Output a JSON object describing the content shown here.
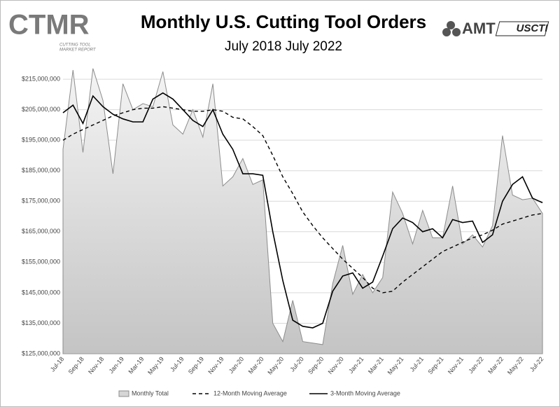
{
  "chart_data": {
    "type": "line",
    "title": "Monthly U.S. Cutting Tool Orders",
    "subtitle": "July 2018 July 2022",
    "logos": {
      "ctmr": "CTMR",
      "ctmr_tagline": [
        "CUTTING TOOL",
        "MARKET REPORT"
      ],
      "amt": "AMT",
      "uscti": "USCTI"
    },
    "categories": [
      "Jul-18",
      null,
      "Sep-18",
      null,
      "Nov-18",
      null,
      "Jan-19",
      null,
      "Mar-19",
      null,
      "May-19",
      null,
      "Jul-19",
      null,
      "Sep-19",
      null,
      "Nov-19",
      null,
      "Jan-20",
      null,
      "Mar-20",
      null,
      "May-20",
      null,
      "Jul-20",
      null,
      "Sep-20",
      null,
      "Nov-20",
      null,
      "Jan-21",
      null,
      "Mar-21",
      null,
      "May-21",
      null,
      "Jul-21",
      null,
      "Sep-21",
      null,
      "Nov-21",
      null,
      "Jan-22",
      null,
      "Mar-22",
      null,
      "May-22",
      null,
      "Jul-22"
    ],
    "series": [
      {
        "name": "Monthly Total",
        "kind": "area",
        "color": "#8c8c8c",
        "values": [
          192000000,
          218000000,
          191000000,
          218500000,
          208000000,
          184000000,
          213500000,
          205000000,
          207000000,
          206000000,
          217500000,
          200000000,
          197000000,
          205000000,
          196000000,
          213500000,
          180000000,
          183000000,
          189000000,
          180500000,
          182000000,
          135000000,
          129000000,
          142500000,
          129000000,
          128500000,
          128000000,
          148000000,
          160500000,
          144500000,
          151000000,
          145000000,
          150000000,
          178000000,
          171000000,
          161000000,
          172000000,
          163000000,
          163000000,
          180000000,
          161000000,
          164000000,
          160000000,
          167000000,
          196500000,
          177000000,
          175500000,
          176000000,
          171000000
        ]
      },
      {
        "name": "12-Month Moving Average",
        "kind": "dashed",
        "color": "#000000",
        "values": [
          195000000,
          197000000,
          198500000,
          200000000,
          201500000,
          203000000,
          204000000,
          205000000,
          205500000,
          205500000,
          206000000,
          205500000,
          205000000,
          204500000,
          204500000,
          205000000,
          204500000,
          202500000,
          202000000,
          199500000,
          196500000,
          190000000,
          183000000,
          177500000,
          171500000,
          167000000,
          163000000,
          159500000,
          156000000,
          153000000,
          150000000,
          146500000,
          145000000,
          145500000,
          148500000,
          151000000,
          153500000,
          156000000,
          158500000,
          160000000,
          161500000,
          163000000,
          164000000,
          165500000,
          167500000,
          168500000,
          169500000,
          170500000,
          171000000
        ]
      },
      {
        "name": "3-Month Moving Average",
        "kind": "solid",
        "color": "#000000",
        "values": [
          204000000,
          206500000,
          200500000,
          209500000,
          206000000,
          203500000,
          202000000,
          201000000,
          201000000,
          208500000,
          210500000,
          208500000,
          205000000,
          201500000,
          199500000,
          205000000,
          197000000,
          192000000,
          184000000,
          184000000,
          183500000,
          165000000,
          149000000,
          136000000,
          134000000,
          133500000,
          135000000,
          145500000,
          150500000,
          151500000,
          146500000,
          148500000,
          157000000,
          166000000,
          169500000,
          168000000,
          165000000,
          166000000,
          163000000,
          169000000,
          168000000,
          168500000,
          161500000,
          164000000,
          175000000,
          180500000,
          183000000,
          176000000,
          174500000
        ]
      }
    ],
    "ylim": [
      125000000,
      218000000
    ],
    "yticks": [
      {
        "value": 125000000,
        "label": "$125,000,000"
      },
      {
        "value": 135000000,
        "label": "$135,000,000"
      },
      {
        "value": 145000000,
        "label": "$145,000,000"
      },
      {
        "value": 155000000,
        "label": "$155,000,000"
      },
      {
        "value": 165000000,
        "label": "$165,000,000"
      },
      {
        "value": 175000000,
        "label": "$175,000,000"
      },
      {
        "value": 185000000,
        "label": "$185,000,000"
      },
      {
        "value": 195000000,
        "label": "$195,000,000"
      },
      {
        "value": 205000000,
        "label": "$205,000,000"
      },
      {
        "value": 215000000,
        "label": "$215,000,000"
      }
    ],
    "grid": true,
    "legend": "bottom"
  }
}
